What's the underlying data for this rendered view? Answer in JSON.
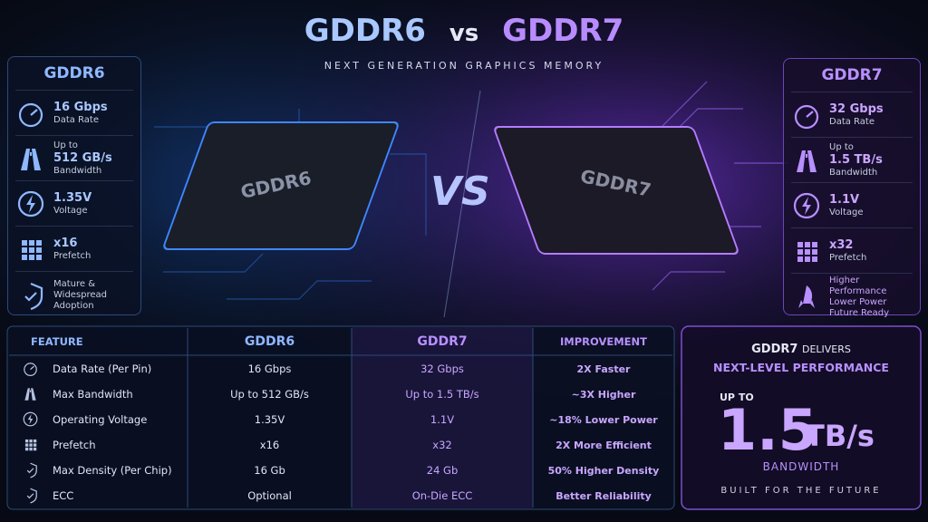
{
  "header": {
    "left": "GDDR6",
    "vs": "vs",
    "right": "GDDR7",
    "subtitle": "NEXT GENERATION GRAPHICS MEMORY"
  },
  "chips": {
    "left": "GDDR6",
    "vs": "VS",
    "right": "GDDR7"
  },
  "left_panel": {
    "title": "GDDR6",
    "items": [
      {
        "value": "16 Gbps",
        "label": "Data Rate"
      },
      {
        "prefix": "Up to",
        "value": "512 GB/s",
        "label": "Bandwidth"
      },
      {
        "value": "1.35V",
        "label": "Voltage"
      },
      {
        "value": "x16",
        "label": "Prefetch"
      },
      {
        "lines": [
          "Mature &",
          "Widespread",
          "Adoption"
        ]
      }
    ]
  },
  "right_panel": {
    "title": "GDDR7",
    "items": [
      {
        "value": "32 Gbps",
        "label": "Data Rate"
      },
      {
        "prefix": "Up to",
        "value": "1.5 TB/s",
        "label": "Bandwidth"
      },
      {
        "value": "1.1V",
        "label": "Voltage"
      },
      {
        "value": "x32",
        "label": "Prefetch"
      },
      {
        "lines": [
          "Higher Performance",
          "Lower Power",
          "Future Ready"
        ]
      }
    ]
  },
  "table": {
    "header": [
      "FEATURE",
      "GDDR6",
      "GDDR7",
      "IMPROVEMENT"
    ],
    "rows": [
      [
        "Data Rate (Per Pin)",
        "16 Gbps",
        "32 Gbps",
        "2X Faster"
      ],
      [
        "Max Bandwidth",
        "Up to 512 GB/s",
        "Up to 1.5 TB/s",
        "~3X Higher"
      ],
      [
        "Operating Voltage",
        "1.35V",
        "1.1V",
        "~18% Lower Power"
      ],
      [
        "Prefetch",
        "x16",
        "x32",
        "2X More Efficient"
      ],
      [
        "Max Density (Per Chip)",
        "16 Gb",
        "24 Gb",
        "50% Higher Density"
      ],
      [
        "ECC",
        "Optional",
        "On-Die ECC",
        "Better Reliability"
      ]
    ]
  },
  "callout": {
    "brand": "GDDR7",
    "delivers": "DELIVERS",
    "headline": "NEXT-LEVEL PERFORMANCE",
    "prefix": "UP TO",
    "number": "1.5",
    "unit": "TB/s",
    "label": "BANDWIDTH",
    "footer": "BUILT FOR THE FUTURE"
  }
}
